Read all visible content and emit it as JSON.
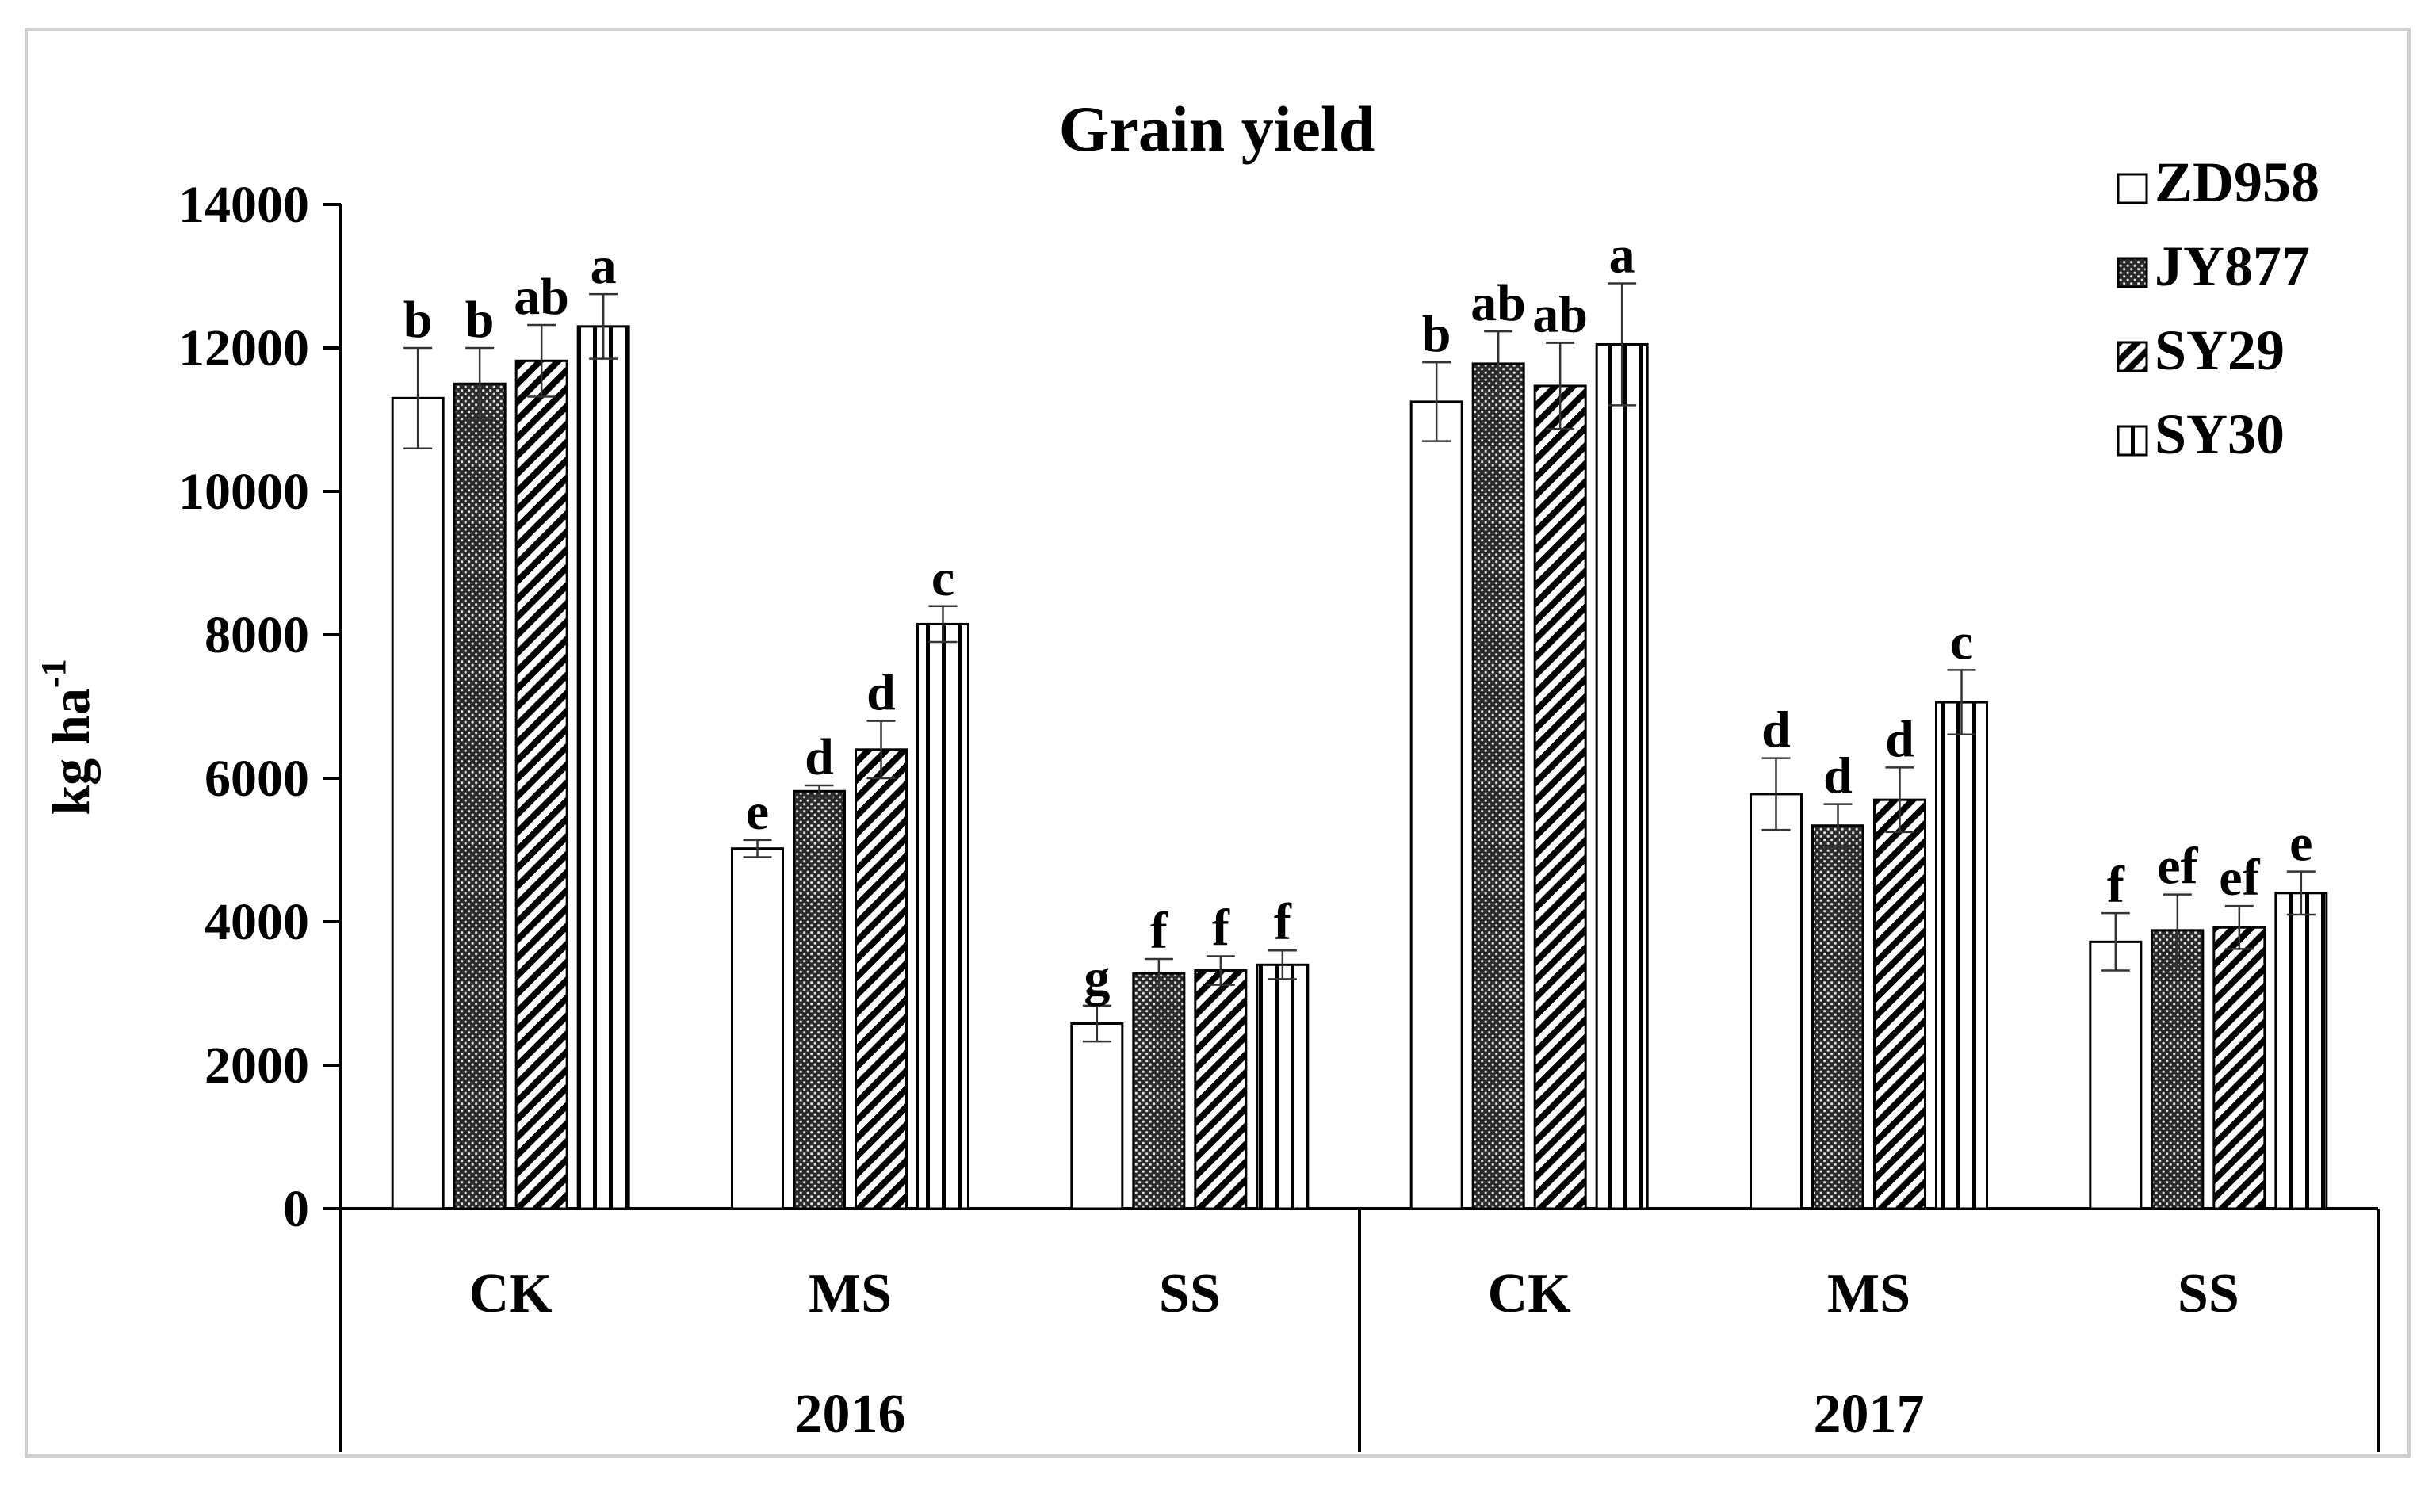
{
  "chart_data": {
    "type": "bar",
    "title": "Grain yield",
    "ylabel": "kg ha",
    "ylabel_sup": "-1",
    "ylim": [
      0,
      14000
    ],
    "yticks": [
      0,
      2000,
      4000,
      6000,
      8000,
      10000,
      12000,
      14000
    ],
    "groups": [
      {
        "year": "2016",
        "categories": [
          "CK",
          "MS",
          "SS"
        ]
      },
      {
        "year": "2017",
        "categories": [
          "CK",
          "MS",
          "SS"
        ]
      }
    ],
    "categories": [
      "CK",
      "MS",
      "SS",
      "CK",
      "MS",
      "SS"
    ],
    "series": [
      {
        "name": "ZD958",
        "pattern": "white",
        "values": [
          11300,
          5020,
          2580,
          11250,
          5780,
          3720
        ],
        "errors": [
          700,
          120,
          250,
          550,
          500,
          400
        ],
        "letters": [
          "b",
          "e",
          "g",
          "b",
          "d",
          "f"
        ]
      },
      {
        "name": "JY877",
        "pattern": "dense-dots",
        "values": [
          11500,
          5820,
          3280,
          11780,
          5340,
          3880
        ],
        "errors": [
          500,
          80,
          200,
          450,
          300,
          500
        ],
        "letters": [
          "b",
          "d",
          "f",
          "ab",
          "d",
          "ef"
        ]
      },
      {
        "name": "SY29",
        "pattern": "diagonal",
        "values": [
          11820,
          6400,
          3320,
          11470,
          5700,
          3920
        ],
        "errors": [
          500,
          400,
          200,
          600,
          450,
          300
        ],
        "letters": [
          "ab",
          "d",
          "f",
          "ab",
          "d",
          "ef"
        ]
      },
      {
        "name": "SY30",
        "pattern": "vertical",
        "values": [
          12300,
          8150,
          3400,
          12050,
          7060,
          4400
        ],
        "errors": [
          450,
          250,
          200,
          850,
          450,
          300
        ],
        "letters": [
          "a",
          "c",
          "f",
          "a",
          "c",
          "e"
        ]
      }
    ],
    "legend_position": "top-right",
    "grid": false
  }
}
